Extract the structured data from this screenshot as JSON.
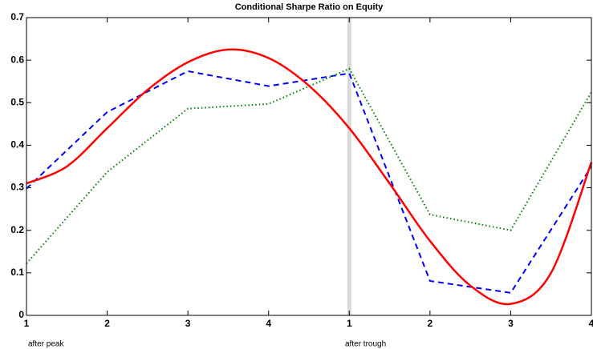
{
  "chart_data": {
    "type": "line",
    "title": "Conditional Sharpe Ratio on Equity",
    "annotations": [
      "after peak",
      "after trough"
    ],
    "xlim": [
      1,
      8
    ],
    "xticks": [
      1,
      2,
      3,
      4,
      {
        "value": 5,
        "label": "1"
      },
      {
        "value": 6,
        "label": "2"
      },
      {
        "value": 7,
        "label": "3"
      },
      {
        "value": 8,
        "label": "4"
      }
    ],
    "ylim": [
      0,
      0.7
    ],
    "yticks": [
      0,
      0.1,
      0.2,
      0.3,
      0.4,
      0.5,
      0.6,
      0.7
    ],
    "vline": 5,
    "vline_color": "#d9d9d9",
    "series": [
      {
        "color": "#0000ff",
        "linestyle": "dashed",
        "smooth": false,
        "x": [
          1,
          2,
          3,
          4,
          5,
          6,
          7,
          8
        ],
        "values": [
          0.298,
          0.478,
          0.574,
          0.539,
          0.569,
          0.081,
          0.053,
          0.35
        ]
      },
      {
        "color": "#008000",
        "linestyle": "dotted",
        "smooth": false,
        "x": [
          1,
          2,
          3,
          4,
          5,
          6,
          7,
          8
        ],
        "values": [
          0.122,
          0.337,
          0.486,
          0.497,
          0.58,
          0.237,
          0.2,
          0.525
        ]
      },
      {
        "color": "#ff0000",
        "linestyle": "solid",
        "smooth": true,
        "x": [
          1,
          1.5,
          2,
          2.5,
          3,
          3.5,
          4,
          4.5,
          5,
          5.5,
          6,
          6.5,
          7,
          7.5,
          8
        ],
        "values": [
          0.31,
          0.35,
          0.44,
          0.53,
          0.595,
          0.625,
          0.605,
          0.54,
          0.44,
          0.31,
          0.175,
          0.07,
          0.027,
          0.1,
          0.36
        ]
      }
    ]
  }
}
